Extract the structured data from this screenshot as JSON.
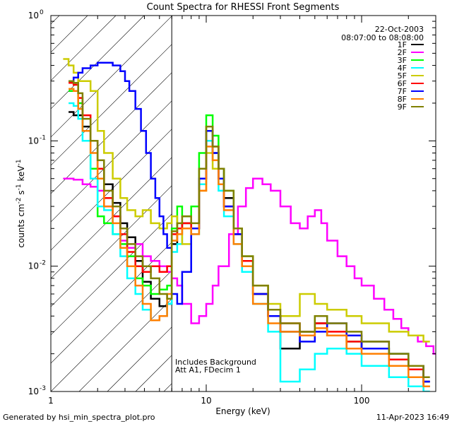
{
  "chart_data": {
    "type": "line",
    "title": "Count Spectra for RHESSI Front Segments",
    "xlabel": "Energy (keV)",
    "ylabel_base": "counts cm",
    "ylabel_sup1": "-2",
    "ylabel_mid": " s",
    "ylabel_sup2": "-1",
    "ylabel_end": " keV",
    "ylabel_sup3": "-1",
    "xscale": "log",
    "yscale": "log",
    "xlim": [
      1,
      300
    ],
    "ylim": [
      0.001,
      1
    ],
    "x_ticks": [
      {
        "value": 1,
        "label": "1"
      },
      {
        "value": 10,
        "label": "10"
      },
      {
        "value": 100,
        "label": "100"
      }
    ],
    "y_ticks": [
      {
        "value": 0.001,
        "base": "10",
        "exp": "-3"
      },
      {
        "value": 0.01,
        "base": "10",
        "exp": "-2"
      },
      {
        "value": 0.1,
        "base": "10",
        "exp": "-1"
      },
      {
        "value": 1,
        "base": "10",
        "exp": "0"
      }
    ],
    "date": "22-Oct-2003",
    "time_range": "08:07:00 to 08:08:00",
    "annotation_line1": "Includes Background",
    "annotation_line2": "Att A1, FDecim 1",
    "hatched_region_max_kev": 6,
    "series": [
      {
        "name": "1F",
        "color": "#000000",
        "x": [
          1.3,
          1.4,
          1.5,
          1.6,
          1.8,
          2.0,
          2.2,
          2.5,
          2.8,
          3.1,
          3.5,
          3.9,
          4.4,
          5.0,
          5.6,
          6.0,
          6.5,
          7,
          8,
          9,
          10,
          11,
          12,
          13,
          15,
          17,
          20,
          25,
          30,
          40,
          50,
          60,
          80,
          100,
          150,
          200,
          250
        ],
        "y": [
          0.17,
          0.16,
          0.16,
          0.13,
          0.1,
          0.06,
          0.045,
          0.032,
          0.022,
          0.017,
          0.011,
          0.0075,
          0.0055,
          0.0048,
          0.005,
          0.015,
          0.02,
          0.022,
          0.02,
          0.05,
          0.1,
          0.08,
          0.06,
          0.035,
          0.018,
          0.011,
          0.006,
          0.004,
          0.0022,
          0.003,
          0.0035,
          0.0028,
          0.0022,
          0.0025,
          0.0018,
          0.0015,
          0.0011
        ]
      },
      {
        "name": "2F",
        "color": "#ff00ff",
        "x": [
          1.2,
          1.4,
          1.6,
          1.8,
          2.0,
          2.2,
          2.5,
          2.8,
          3.1,
          3.5,
          3.9,
          4.4,
          5.0,
          5.6,
          6.0,
          6.5,
          7,
          8,
          9,
          10,
          11,
          12,
          14,
          16,
          18,
          20,
          23,
          26,
          30,
          35,
          40,
          45,
          50,
          55,
          60,
          70,
          80,
          90,
          100,
          120,
          140,
          160,
          180,
          200,
          230,
          260,
          290
        ],
        "y": [
          0.05,
          0.049,
          0.045,
          0.043,
          0.04,
          0.03,
          0.025,
          0.016,
          0.014,
          0.015,
          0.012,
          0.011,
          0.01,
          0.009,
          0.008,
          0.007,
          0.005,
          0.0035,
          0.004,
          0.005,
          0.007,
          0.01,
          0.018,
          0.03,
          0.042,
          0.05,
          0.045,
          0.04,
          0.03,
          0.022,
          0.02,
          0.025,
          0.028,
          0.022,
          0.016,
          0.012,
          0.01,
          0.008,
          0.007,
          0.0055,
          0.0045,
          0.0038,
          0.0032,
          0.0028,
          0.0025,
          0.0023,
          0.002
        ]
      },
      {
        "name": "3F",
        "color": "#00ff00",
        "x": [
          1.3,
          1.4,
          1.5,
          1.6,
          1.8,
          2.0,
          2.2,
          2.5,
          2.8,
          3.1,
          3.5,
          3.9,
          4.4,
          5.0,
          5.6,
          6.0,
          6.5,
          7,
          8,
          9,
          10,
          11,
          12,
          13,
          15,
          17,
          20,
          25,
          30,
          40,
          50,
          60,
          80,
          100,
          150,
          200,
          250
        ],
        "y": [
          0.25,
          0.25,
          0.2,
          0.12,
          0.06,
          0.025,
          0.022,
          0.018,
          0.015,
          0.012,
          0.008,
          0.007,
          0.006,
          0.0065,
          0.007,
          0.02,
          0.03,
          0.025,
          0.03,
          0.08,
          0.16,
          0.11,
          0.06,
          0.04,
          0.02,
          0.012,
          0.006,
          0.004,
          0.003,
          0.003,
          0.004,
          0.0028,
          0.0025,
          0.0022,
          0.002,
          0.0016,
          0.0012
        ]
      },
      {
        "name": "4F",
        "color": "#00ffff",
        "x": [
          1.3,
          1.4,
          1.5,
          1.6,
          1.8,
          2.0,
          2.2,
          2.5,
          2.8,
          3.1,
          3.5,
          3.9,
          4.4,
          5.0,
          5.6,
          6.0,
          6.5,
          7,
          8,
          9,
          10,
          11,
          12,
          13,
          15,
          17,
          20,
          25,
          30,
          40,
          50,
          60,
          80,
          100,
          150,
          200,
          250
        ],
        "y": [
          0.2,
          0.19,
          0.15,
          0.1,
          0.05,
          0.03,
          0.028,
          0.018,
          0.012,
          0.008,
          0.006,
          0.0045,
          0.0037,
          0.004,
          0.005,
          0.013,
          0.015,
          0.02,
          0.018,
          0.045,
          0.1,
          0.07,
          0.04,
          0.025,
          0.015,
          0.009,
          0.005,
          0.003,
          0.0012,
          0.0015,
          0.002,
          0.0022,
          0.002,
          0.0016,
          0.0013,
          0.0011,
          0.001
        ]
      },
      {
        "name": "5F",
        "color": "#cccc00",
        "x": [
          1.2,
          1.3,
          1.4,
          1.5,
          1.6,
          1.8,
          2.0,
          2.2,
          2.5,
          2.8,
          3.1,
          3.5,
          3.9,
          4.4,
          5.0,
          5.6,
          6.0,
          6.5,
          7,
          8,
          9,
          10,
          11,
          12,
          13,
          15,
          17,
          20,
          25,
          30,
          40,
          50,
          60,
          80,
          100,
          150,
          200,
          250
        ],
        "y": [
          0.45,
          0.4,
          0.35,
          0.3,
          0.3,
          0.25,
          0.12,
          0.08,
          0.05,
          0.035,
          0.028,
          0.025,
          0.028,
          0.022,
          0.02,
          0.022,
          0.025,
          0.02,
          0.015,
          0.02,
          0.04,
          0.08,
          0.06,
          0.05,
          0.03,
          0.02,
          0.012,
          0.007,
          0.005,
          0.004,
          0.006,
          0.005,
          0.0045,
          0.004,
          0.0035,
          0.003,
          0.0028,
          0.0025
        ]
      },
      {
        "name": "6F",
        "color": "#ff0000",
        "x": [
          1.3,
          1.4,
          1.5,
          1.6,
          1.8,
          2.0,
          2.2,
          2.5,
          2.8,
          3.1,
          3.5,
          3.9,
          4.4,
          5.0,
          5.6,
          6.0,
          6.5,
          7,
          8,
          9,
          10,
          11,
          12,
          13,
          15,
          17,
          20,
          25,
          30,
          40,
          50,
          60,
          80,
          100,
          150,
          200,
          250
        ],
        "y": [
          0.29,
          0.28,
          0.22,
          0.16,
          0.1,
          0.06,
          0.035,
          0.025,
          0.018,
          0.013,
          0.01,
          0.009,
          0.01,
          0.009,
          0.01,
          0.018,
          0.02,
          0.022,
          0.02,
          0.05,
          0.12,
          0.09,
          0.05,
          0.03,
          0.018,
          0.011,
          0.006,
          0.004,
          0.0035,
          0.003,
          0.0035,
          0.003,
          0.0025,
          0.0022,
          0.0018,
          0.0015,
          0.0012
        ]
      },
      {
        "name": "7F",
        "color": "#0000ff",
        "x": [
          1.3,
          1.4,
          1.5,
          1.6,
          1.8,
          2.0,
          2.2,
          2.5,
          2.8,
          3.0,
          3.2,
          3.5,
          3.8,
          4.1,
          4.4,
          4.7,
          5.0,
          5.3,
          5.6,
          6.0,
          6.5,
          7,
          8,
          9,
          10,
          11,
          12,
          13,
          15,
          17,
          20,
          25,
          30,
          40,
          50,
          60,
          80,
          100,
          150,
          200,
          250
        ],
        "y": [
          0.3,
          0.32,
          0.35,
          0.38,
          0.4,
          0.42,
          0.42,
          0.4,
          0.36,
          0.3,
          0.25,
          0.18,
          0.12,
          0.08,
          0.05,
          0.035,
          0.025,
          0.018,
          0.014,
          0.006,
          0.005,
          0.009,
          0.02,
          0.05,
          0.12,
          0.08,
          0.05,
          0.03,
          0.018,
          0.01,
          0.006,
          0.004,
          0.003,
          0.0025,
          0.003,
          0.0035,
          0.0028,
          0.0022,
          0.002,
          0.0016,
          0.0012
        ]
      },
      {
        "name": "8F",
        "color": "#ff7f00",
        "x": [
          1.3,
          1.4,
          1.5,
          1.6,
          1.8,
          2.0,
          2.2,
          2.5,
          2.8,
          3.1,
          3.5,
          3.9,
          4.4,
          5.0,
          5.6,
          6.0,
          6.5,
          7,
          8,
          9,
          10,
          11,
          12,
          13,
          15,
          17,
          20,
          25,
          30,
          40,
          50,
          60,
          80,
          100,
          150,
          200,
          250
        ],
        "y": [
          0.26,
          0.25,
          0.18,
          0.12,
          0.08,
          0.05,
          0.03,
          0.022,
          0.014,
          0.01,
          0.007,
          0.005,
          0.0037,
          0.004,
          0.006,
          0.016,
          0.018,
          0.02,
          0.018,
          0.04,
          0.09,
          0.07,
          0.045,
          0.028,
          0.015,
          0.01,
          0.005,
          0.0035,
          0.003,
          0.0028,
          0.0032,
          0.0028,
          0.0022,
          0.002,
          0.0016,
          0.0013,
          0.0011
        ]
      },
      {
        "name": "9F",
        "color": "#808000",
        "x": [
          1.3,
          1.4,
          1.5,
          1.6,
          1.8,
          2.0,
          2.2,
          2.5,
          2.8,
          3.1,
          3.5,
          3.9,
          4.4,
          5.0,
          5.6,
          6.0,
          6.5,
          7,
          8,
          9,
          10,
          11,
          12,
          13,
          15,
          17,
          20,
          25,
          30,
          40,
          50,
          60,
          80,
          100,
          150,
          200,
          250
        ],
        "y": [
          0.3,
          0.29,
          0.24,
          0.15,
          0.1,
          0.07,
          0.04,
          0.03,
          0.02,
          0.015,
          0.012,
          0.01,
          0.008,
          0.006,
          0.0055,
          0.019,
          0.022,
          0.025,
          0.022,
          0.06,
          0.13,
          0.09,
          0.06,
          0.04,
          0.02,
          0.012,
          0.007,
          0.0045,
          0.0035,
          0.003,
          0.004,
          0.0035,
          0.003,
          0.0025,
          0.002,
          0.0016,
          0.0013
        ]
      }
    ]
  },
  "footer": {
    "left": "Generated by hsi_min_spectra_plot.pro",
    "right": "11-Apr-2023 16:49"
  }
}
